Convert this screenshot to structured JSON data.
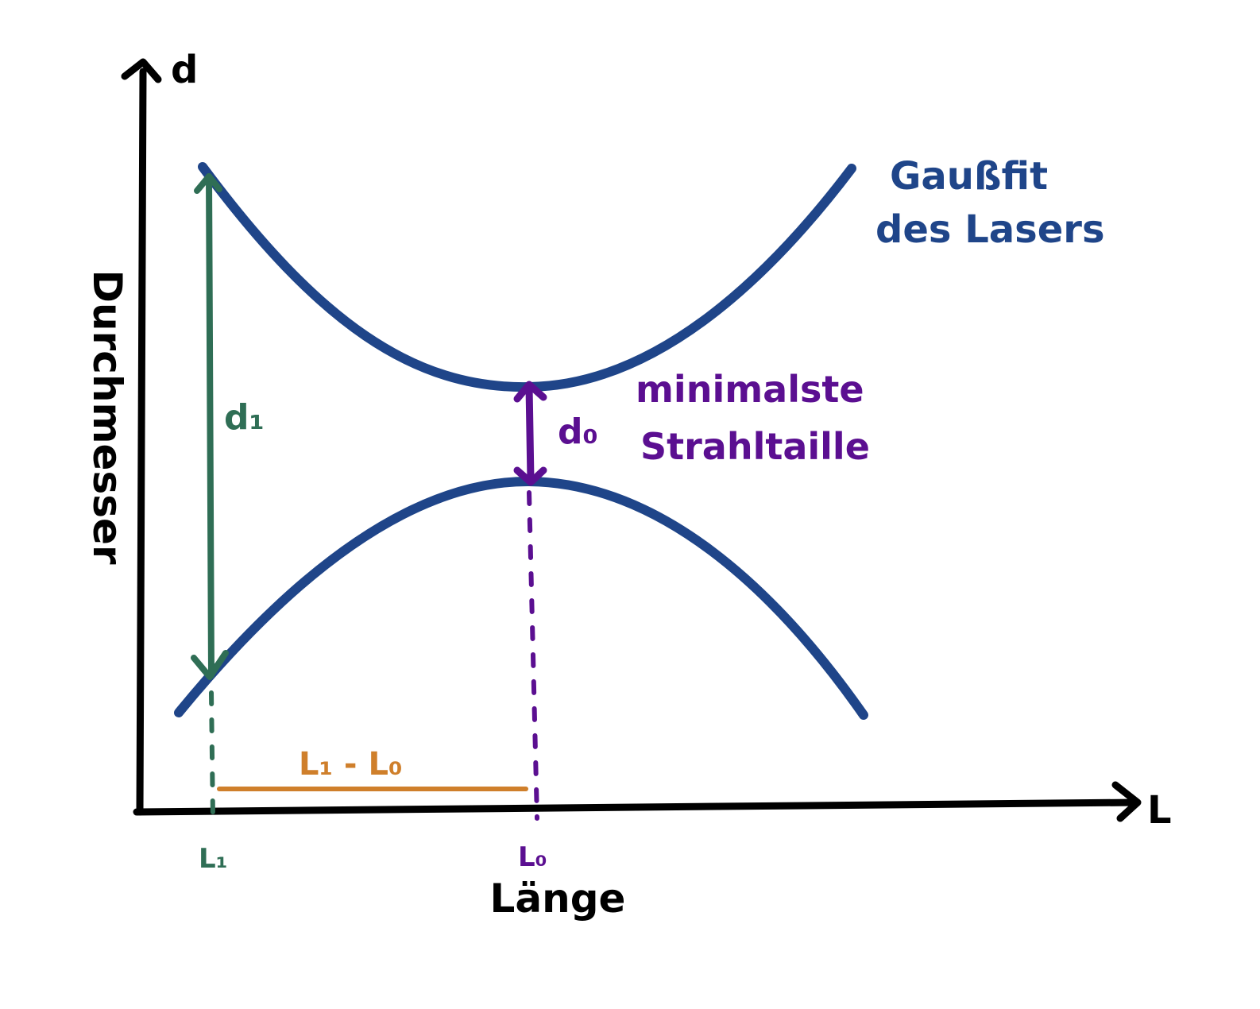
{
  "axes": {
    "y_axis_symbol": "d",
    "x_axis_symbol": "L",
    "y_axis_label": "Durchmesser",
    "x_axis_label": "Länge"
  },
  "annotations": {
    "curve_label_line1": "Gaußfit",
    "curve_label_line2": "des Lasers",
    "d1_label": "d₁",
    "d0_label": "d₀",
    "waist_label_line1": "minimalste",
    "waist_label_line2": "Strahltaille",
    "L1_label": "L₁",
    "L0_label": "L₀",
    "distance_label": "L₁ - L₀"
  },
  "colors": {
    "axis": "#000000",
    "curve": "#1f4589",
    "d1": "#2f6e55",
    "d0": "#5b0f91",
    "distance": "#cf7f2b"
  }
}
